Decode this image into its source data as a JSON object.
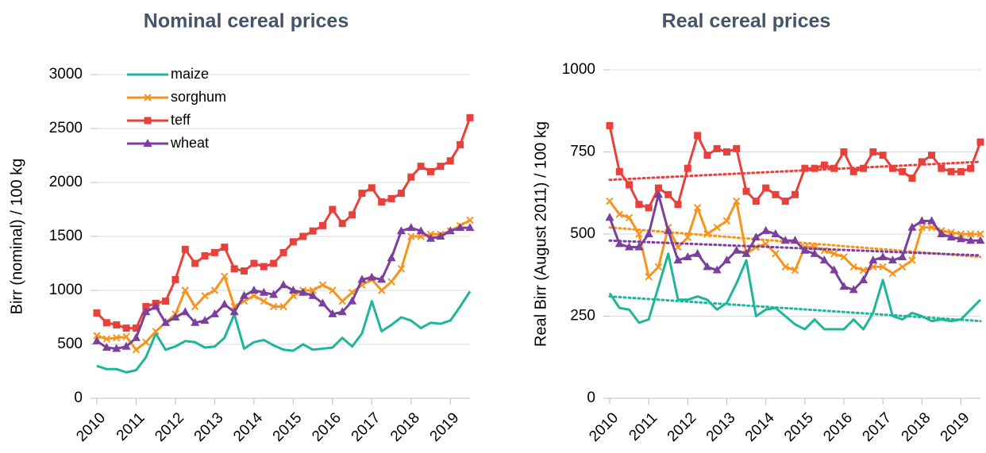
{
  "chart_data": [
    {
      "type": "line",
      "title": "Nominal cereal prices",
      "ylabel": "Birr (nominal) / 100 kg",
      "x": [
        2010,
        2010.25,
        2010.5,
        2010.75,
        2011,
        2011.25,
        2011.5,
        2011.75,
        2012,
        2012.25,
        2012.5,
        2012.75,
        2013,
        2013.25,
        2013.5,
        2013.75,
        2014,
        2014.25,
        2014.5,
        2014.75,
        2015,
        2015.25,
        2015.5,
        2015.75,
        2016,
        2016.25,
        2016.5,
        2016.75,
        2017,
        2017.25,
        2017.5,
        2017.75,
        2018,
        2018.25,
        2018.5,
        2018.75,
        2019,
        2019.25,
        2019.5
      ],
      "series": [
        {
          "name": "maize",
          "color": "#1fb59a",
          "marker": "none",
          "values": [
            300,
            270,
            270,
            240,
            260,
            380,
            600,
            450,
            480,
            530,
            520,
            470,
            480,
            560,
            780,
            460,
            520,
            540,
            490,
            450,
            440,
            500,
            450,
            460,
            470,
            560,
            480,
            600,
            900,
            620,
            680,
            750,
            720,
            650,
            700,
            690,
            720,
            850,
            990
          ]
        },
        {
          "name": "sorghum",
          "color": "#f7941d",
          "marker": "x",
          "values": [
            580,
            550,
            560,
            570,
            450,
            520,
            620,
            700,
            780,
            1000,
            850,
            950,
            1000,
            1130,
            850,
            900,
            950,
            900,
            850,
            850,
            950,
            1000,
            1000,
            1050,
            1000,
            900,
            980,
            1050,
            1100,
            1000,
            1080,
            1200,
            1500,
            1500,
            1520,
            1520,
            1550,
            1600,
            1650
          ]
        },
        {
          "name": "teff",
          "color": "#e8413c",
          "marker": "square",
          "values": [
            790,
            700,
            680,
            650,
            650,
            850,
            880,
            900,
            1100,
            1380,
            1250,
            1320,
            1350,
            1400,
            1200,
            1180,
            1250,
            1220,
            1250,
            1350,
            1450,
            1500,
            1550,
            1600,
            1750,
            1620,
            1700,
            1900,
            1950,
            1820,
            1850,
            1900,
            2050,
            2150,
            2100,
            2150,
            2200,
            2350,
            2600
          ]
        },
        {
          "name": "wheat",
          "color": "#7b3f9e",
          "marker": "triangle",
          "values": [
            530,
            470,
            460,
            480,
            560,
            800,
            850,
            700,
            750,
            800,
            700,
            720,
            780,
            870,
            800,
            950,
            1000,
            980,
            960,
            1050,
            1000,
            980,
            950,
            880,
            780,
            800,
            900,
            1100,
            1120,
            1100,
            1300,
            1550,
            1580,
            1550,
            1480,
            1500,
            1550,
            1580,
            1580
          ]
        }
      ],
      "xlim": [
        2010,
        2019.5
      ],
      "xticks": [
        2010,
        2011,
        2012,
        2013,
        2014,
        2015,
        2016,
        2017,
        2018,
        2019
      ],
      "ylim": [
        0,
        3000
      ],
      "yticks": [
        0,
        500,
        1000,
        1500,
        2000,
        2500,
        3000
      ],
      "grid": true,
      "legend": "upper left"
    },
    {
      "type": "line",
      "title": "Real cereal prices",
      "ylabel": "Real Birr (August 2011) / 100 kg",
      "x": [
        2010,
        2010.25,
        2010.5,
        2010.75,
        2011,
        2011.25,
        2011.5,
        2011.75,
        2012,
        2012.25,
        2012.5,
        2012.75,
        2013,
        2013.25,
        2013.5,
        2013.75,
        2014,
        2014.25,
        2014.5,
        2014.75,
        2015,
        2015.25,
        2015.5,
        2015.75,
        2016,
        2016.25,
        2016.5,
        2016.75,
        2017,
        2017.25,
        2017.5,
        2017.75,
        2018,
        2018.25,
        2018.5,
        2018.75,
        2019,
        2019.25,
        2019.5
      ],
      "series": [
        {
          "color": "#1fb59a",
          "marker": "none",
          "trend": [
            310,
            235
          ],
          "values": [
            320,
            275,
            270,
            230,
            240,
            340,
            440,
            300,
            300,
            310,
            300,
            270,
            290,
            350,
            420,
            250,
            270,
            275,
            250,
            225,
            210,
            240,
            210,
            210,
            210,
            240,
            210,
            260,
            360,
            250,
            240,
            260,
            250,
            235,
            240,
            235,
            240,
            270,
            300
          ]
        },
        {
          "color": "#f7941d",
          "marker": "x",
          "trend": [
            520,
            430
          ],
          "values": [
            600,
            560,
            550,
            500,
            370,
            400,
            520,
            460,
            490,
            580,
            500,
            520,
            540,
            600,
            440,
            460,
            470,
            440,
            400,
            390,
            460,
            460,
            450,
            440,
            430,
            400,
            390,
            400,
            400,
            380,
            400,
            420,
            520,
            520,
            510,
            505,
            500,
            500,
            500
          ]
        },
        {
          "color": "#e8413c",
          "marker": "square",
          "trend": [
            665,
            720
          ],
          "values": [
            830,
            690,
            650,
            590,
            580,
            640,
            620,
            590,
            700,
            800,
            740,
            760,
            750,
            760,
            630,
            600,
            640,
            620,
            600,
            620,
            700,
            700,
            710,
            700,
            750,
            690,
            700,
            750,
            740,
            700,
            690,
            670,
            720,
            740,
            700,
            690,
            690,
            700,
            780
          ]
        },
        {
          "color": "#7b3f9e",
          "marker": "triangle",
          "trend": [
            480,
            435
          ],
          "values": [
            550,
            470,
            460,
            460,
            500,
            620,
            510,
            420,
            430,
            440,
            400,
            390,
            420,
            450,
            440,
            490,
            510,
            500,
            480,
            480,
            450,
            440,
            420,
            390,
            340,
            330,
            360,
            420,
            430,
            420,
            430,
            520,
            540,
            540,
            500,
            490,
            485,
            480,
            480
          ]
        }
      ],
      "xlim": [
        2010,
        2019.5
      ],
      "xticks": [
        2010,
        2011,
        2012,
        2013,
        2014,
        2015,
        2016,
        2017,
        2018,
        2019
      ],
      "ylim": [
        0,
        1000
      ],
      "yticks": [
        0,
        250,
        500,
        750,
        1000
      ],
      "grid": true
    }
  ]
}
